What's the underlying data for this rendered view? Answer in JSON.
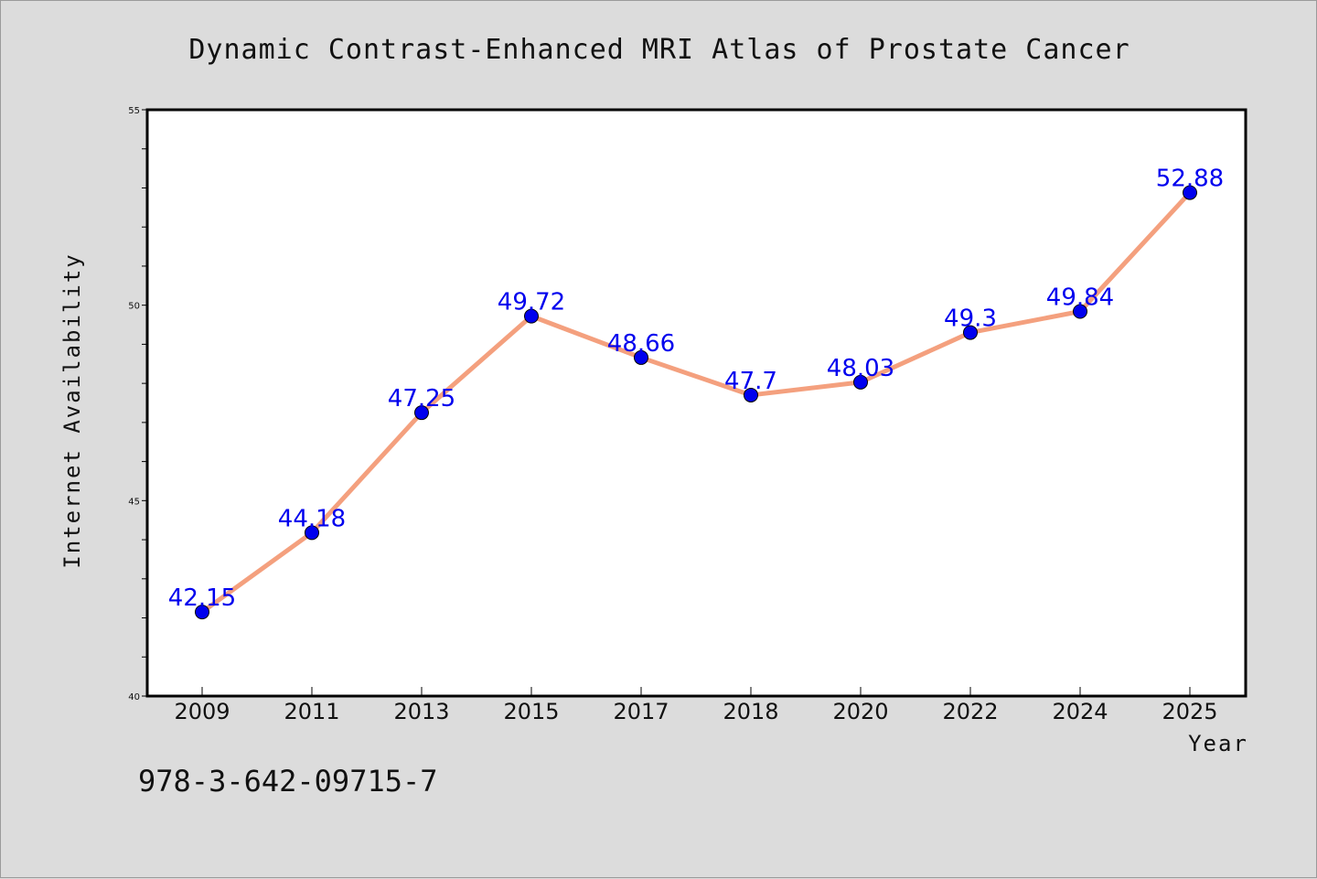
{
  "chart_data": {
    "type": "line",
    "title": "Dynamic Contrast-Enhanced MRI Atlas of Prostate Cancer",
    "xlabel": "Year",
    "ylabel": "Internet Availability",
    "categories": [
      "2009",
      "2011",
      "2013",
      "2015",
      "2017",
      "2018",
      "2020",
      "2022",
      "2024",
      "2025"
    ],
    "series": [
      {
        "values": [
          42.15,
          44.18,
          47.25,
          49.72,
          48.66,
          47.7,
          48.03,
          49.3,
          49.84,
          52.88
        ],
        "data_labels": [
          "42.15",
          "44.18",
          "47.25",
          "49.72",
          "48.66",
          "47.7",
          "48.03",
          "49.3",
          "49.84",
          "52.88"
        ]
      }
    ],
    "ylim": [
      40,
      55
    ],
    "y_ticks": [
      "40",
      "45",
      "50",
      "55"
    ],
    "y_minor_step": 1,
    "grid": false,
    "colors": {
      "line": "#f4a07e",
      "marker": "#0000ee",
      "label": "#0000ee",
      "background": "#dcdcdc",
      "plot_bg": "#ffffff"
    }
  },
  "annotation": "978-3-642-09715-7"
}
